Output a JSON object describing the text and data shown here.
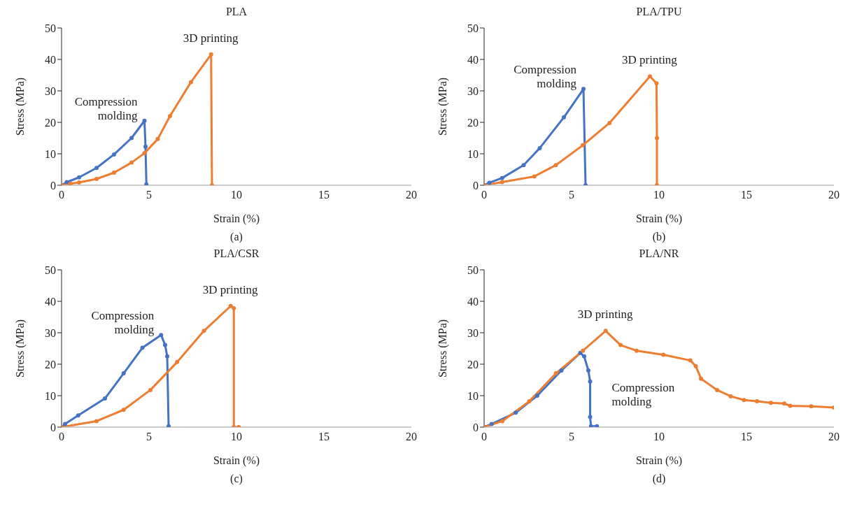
{
  "chart_data": [
    {
      "type": "line",
      "title": "PLA",
      "xlabel": "Strain (%)",
      "ylabel": "Stress (MPa)",
      "annotations": [
        "(a)"
      ],
      "xlim": [
        0,
        20
      ],
      "xticks": [
        0,
        5,
        10,
        15,
        20
      ],
      "ylim": [
        0,
        50
      ],
      "yticks": [
        0,
        10,
        20,
        30,
        40,
        50
      ],
      "marker": "circle",
      "series": [
        {
          "name": "Compression molding",
          "color": "#4472c4",
          "x": [
            0,
            0.3,
            1,
            2,
            3,
            4,
            4.74,
            4.8,
            4.85
          ],
          "values": [
            0,
            1,
            2.5,
            5.5,
            9.8,
            15,
            20.5,
            12.3,
            0.3
          ]
        },
        {
          "name": "3D printing",
          "color": "#ed7d31",
          "x": [
            0,
            0.5,
            1,
            2,
            3,
            4,
            4.74,
            5.5,
            6.2,
            7.4,
            8.55,
            8.6
          ],
          "values": [
            0,
            0.5,
            0.9,
            2,
            4,
            7.2,
            10.2,
            14.7,
            22,
            32.8,
            41.6,
            0
          ]
        }
      ]
    },
    {
      "type": "line",
      "title": "PLA/TPU",
      "xlabel": "Strain (%)",
      "ylabel": "Stress (MPa)",
      "annotations": [
        "(b)"
      ],
      "xlim": [
        0,
        20
      ],
      "xticks": [
        0,
        5,
        10,
        15,
        20
      ],
      "ylim": [
        0,
        50
      ],
      "yticks": [
        0,
        10,
        20,
        30,
        40,
        50
      ],
      "marker": "circle",
      "series": [
        {
          "name": "Compression molding",
          "color": "#4472c4",
          "x": [
            0,
            0.3,
            1.03,
            2.26,
            3.18,
            4.56,
            5.68,
            5.8
          ],
          "values": [
            0,
            0.8,
            2.3,
            6.4,
            11.8,
            21.6,
            30.6,
            0
          ]
        },
        {
          "name": "3D printing",
          "color": "#ed7d31",
          "x": [
            0,
            1.03,
            2.87,
            4.1,
            5.64,
            7.17,
            9.48,
            9.86,
            9.88,
            9.88
          ],
          "values": [
            0,
            1,
            2.8,
            6.4,
            12.7,
            19.8,
            34.6,
            32.4,
            15,
            0
          ]
        }
      ]
    },
    {
      "type": "line",
      "title": "PLA/CSR",
      "xlabel": "Strain (%)",
      "ylabel": "Stress (MPa)",
      "annotations": [
        "(c)"
      ],
      "xlim": [
        0,
        20
      ],
      "xticks": [
        0,
        5,
        10,
        15,
        20
      ],
      "ylim": [
        0,
        50
      ],
      "yticks": [
        0,
        10,
        20,
        30,
        40,
        50
      ],
      "marker": "circle",
      "series": [
        {
          "name": "Compression molding",
          "color": "#4472c4",
          "x": [
            0,
            0.2,
            0.95,
            2.48,
            3.55,
            4.62,
            5.69,
            5.92,
            6.04,
            6.12
          ],
          "values": [
            0,
            1,
            3.7,
            9.1,
            17.1,
            25.2,
            29.3,
            26.1,
            22.5,
            0.3
          ]
        },
        {
          "name": "3D printing",
          "color": "#ed7d31",
          "x": [
            0,
            2,
            3.55,
            5.08,
            6.61,
            8.14,
            9.67,
            9.85,
            9.85,
            10.13
          ],
          "values": [
            0,
            1.9,
            5.5,
            11.8,
            20.7,
            30.6,
            38.5,
            37.8,
            0,
            0
          ]
        }
      ]
    },
    {
      "type": "line",
      "title": "PLA/NR",
      "xlabel": "Strain (%)",
      "ylabel": "Stress (MPa)",
      "annotations": [
        "(d)"
      ],
      "xlim": [
        0,
        20
      ],
      "xticks": [
        0,
        5,
        10,
        15,
        20
      ],
      "ylim": [
        0,
        50
      ],
      "yticks": [
        0,
        10,
        20,
        30,
        40,
        50
      ],
      "marker": "circle",
      "series": [
        {
          "name": "Compression molding",
          "color": "#4472c4",
          "x": [
            0,
            0.43,
            1.81,
            3.04,
            4.42,
            5.5,
            5.72,
            5.96,
            6.06,
            6.06,
            6.11,
            6.45
          ],
          "values": [
            0,
            1,
            4.6,
            10,
            18,
            23.6,
            22.5,
            18,
            14.5,
            3.2,
            0.3,
            0.3
          ]
        },
        {
          "name": "3D printing",
          "color": "#ed7d31",
          "x": [
            0,
            1.04,
            2.58,
            4.11,
            5.65,
            6.95,
            7.8,
            8.72,
            10.25,
            11.79,
            12.1,
            12.4,
            13.32,
            14.1,
            14.86,
            15.6,
            16.4,
            17.16,
            17.5,
            18.7,
            20
          ],
          "values": [
            0,
            1.9,
            8.2,
            17.1,
            24.3,
            30.6,
            26.1,
            24.3,
            23,
            21.2,
            19.4,
            15.4,
            11.8,
            9.8,
            8.6,
            8.2,
            7.7,
            7.5,
            6.8,
            6.6,
            6.2
          ]
        }
      ]
    }
  ]
}
